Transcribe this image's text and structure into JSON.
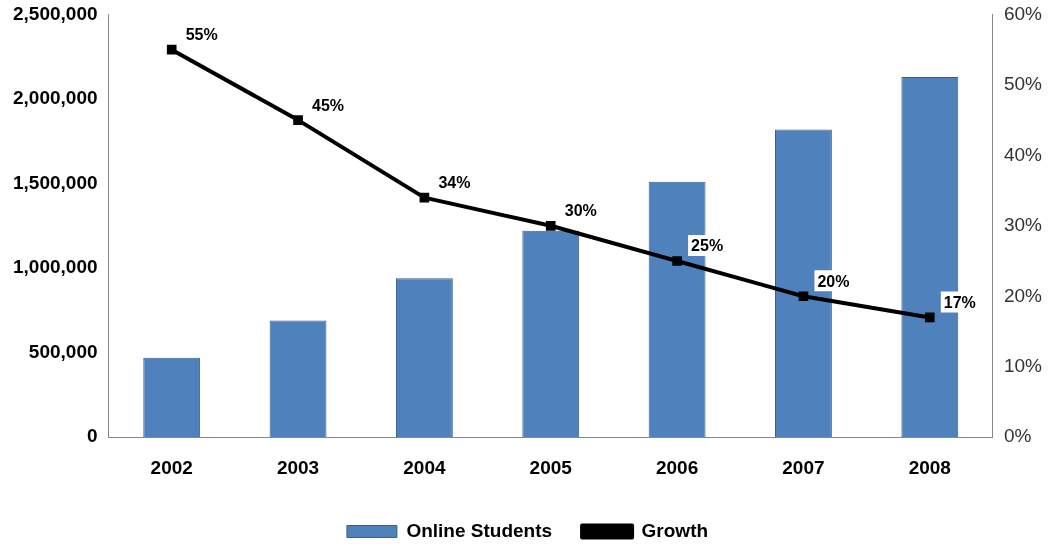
{
  "chart_data": {
    "type": "bar",
    "categories": [
      "2002",
      "2003",
      "2004",
      "2005",
      "2006",
      "2007",
      "2008"
    ],
    "series": [
      {
        "name": "Online Students",
        "color": "#4f81bd",
        "values": [
          470000,
          690000,
          940000,
          1220000,
          1510000,
          1820000,
          2130000
        ]
      },
      {
        "name": "Growth",
        "type": "line",
        "axis": "y2",
        "color": "#000000",
        "values": [
          55,
          45,
          34,
          30,
          25,
          20,
          17
        ],
        "value_labels": [
          "55%",
          "45%",
          "34%",
          "30%",
          "25%",
          "20%",
          "17%"
        ]
      }
    ],
    "ylim": [
      0,
      2500000
    ],
    "yticks": [
      {
        "value": 0,
        "label": "0"
      },
      {
        "value": 500000,
        "label": "500,000"
      },
      {
        "value": 1000000,
        "label": "1,000,000"
      },
      {
        "value": 1500000,
        "label": "1,500,000"
      },
      {
        "value": 2000000,
        "label": "2,000,000"
      },
      {
        "value": 2500000,
        "label": "2,500,000"
      }
    ],
    "y2lim": [
      0,
      60
    ],
    "y2ticks": [
      {
        "value": 0,
        "label": "0%"
      },
      {
        "value": 10,
        "label": "10%"
      },
      {
        "value": 20,
        "label": "20%"
      },
      {
        "value": 30,
        "label": "30%"
      },
      {
        "value": 40,
        "label": "40%"
      },
      {
        "value": 50,
        "label": "50%"
      },
      {
        "value": 60,
        "label": "60%"
      }
    ],
    "grid": false,
    "legend": "bottom",
    "marker": "square",
    "line_style": "solid"
  }
}
